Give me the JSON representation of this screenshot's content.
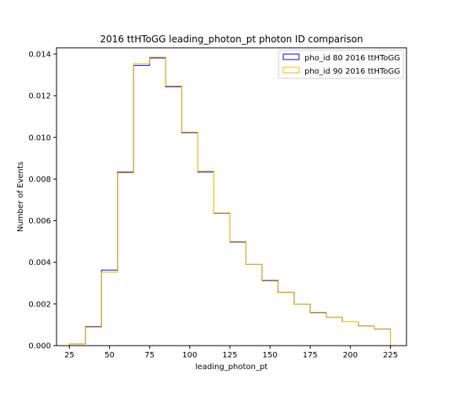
{
  "chart_data": {
    "type": "step-histogram",
    "title": "2016 ttHToGG leading_photon_pt photon ID comparison",
    "xlabel": "leading_photon_pt",
    "ylabel": "Number of Events",
    "xlim": [
      17,
      235
    ],
    "ylim": [
      0,
      0.0143
    ],
    "xticks": [
      25,
      50,
      75,
      100,
      125,
      150,
      175,
      200,
      225
    ],
    "yticks": [
      0.0,
      0.002,
      0.004,
      0.006,
      0.008,
      0.01,
      0.012,
      0.014
    ],
    "ytick_labels": [
      "0.000",
      "0.002",
      "0.004",
      "0.006",
      "0.008",
      "0.010",
      "0.012",
      "0.014"
    ],
    "bin_edges": [
      25,
      35,
      45,
      55,
      65,
      75,
      85,
      95,
      105,
      115,
      125,
      135,
      145,
      155,
      165,
      175,
      185,
      195,
      205,
      215,
      225
    ],
    "legend_position": "top-right",
    "series": [
      {
        "name": "pho_id 80 2016 ttHToGG",
        "color": "#0000cc",
        "values": [
          8e-05,
          0.00091,
          0.00362,
          0.00833,
          0.01346,
          0.01381,
          0.01243,
          0.01022,
          0.00834,
          0.00636,
          0.00497,
          0.0039,
          0.00313,
          0.00255,
          0.00199,
          0.00158,
          0.00136,
          0.00115,
          0.00094,
          0.00079
        ]
      },
      {
        "name": "pho_id 90 2016 ttHToGG",
        "color": "#f5b800",
        "values": [
          8e-05,
          0.00088,
          0.00353,
          0.00829,
          0.01354,
          0.01385,
          0.01247,
          0.01025,
          0.00838,
          0.00638,
          0.005,
          0.0039,
          0.0031,
          0.00254,
          0.00199,
          0.00156,
          0.00136,
          0.00115,
          0.00093,
          0.00078
        ]
      }
    ]
  }
}
